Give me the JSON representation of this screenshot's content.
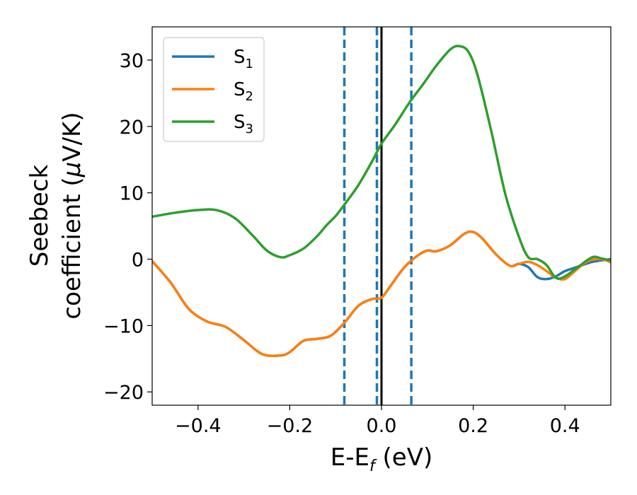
{
  "chart_data": {
    "type": "line",
    "xlabel": "E-E",
    "xlabel_sub": "f",
    "xlabel_unit": " (eV)",
    "ylabel_line1": "Seebeck",
    "ylabel_line2_pre": "coefficient  (",
    "ylabel_line2_mu": "μ",
    "ylabel_line2_post": "V/K)",
    "xlim": [
      -0.5,
      0.5
    ],
    "ylim": [
      -22,
      35
    ],
    "x_ticks": [
      -0.4,
      -0.2,
      0.0,
      0.2,
      0.4
    ],
    "x_tick_labels": [
      "−0.4",
      "−0.2",
      "0.0",
      "0.2",
      "0.4"
    ],
    "y_ticks": [
      -20,
      -10,
      0,
      10,
      20,
      30
    ],
    "y_tick_labels": [
      "−20",
      "−10",
      "0",
      "10",
      "20",
      "30"
    ],
    "grid": false,
    "legend_position": "top-left",
    "series": [
      {
        "name": "S",
        "subscript": "1",
        "color": "#1f77b4",
        "x": [
          -0.5,
          -0.46,
          -0.42,
          -0.38,
          -0.34,
          -0.3,
          -0.26,
          -0.22,
          -0.2,
          -0.17,
          -0.14,
          -0.11,
          -0.08,
          -0.05,
          -0.02,
          0.0,
          0.02,
          0.05,
          0.08,
          0.1,
          0.12,
          0.15,
          0.18,
          0.2,
          0.22,
          0.25,
          0.28,
          0.3,
          0.32,
          0.34,
          0.36,
          0.38,
          0.4,
          0.43,
          0.46,
          0.5
        ],
        "values": [
          -0.3,
          -3.5,
          -7.5,
          -9.4,
          -10.2,
          -12.2,
          -14.3,
          -14.5,
          -14.0,
          -12.3,
          -12.0,
          -11.5,
          -9.5,
          -7.0,
          -6.0,
          -5.8,
          -4.0,
          -1.2,
          0.6,
          1.3,
          1.2,
          2.1,
          3.8,
          4.1,
          3.1,
          0.7,
          -1.0,
          -0.7,
          -1.2,
          -2.7,
          -3.0,
          -2.6,
          -1.8,
          -1.1,
          -0.4,
          0.0
        ]
      },
      {
        "name": "S",
        "subscript": "2",
        "color": "#ff7f0e",
        "x": [
          -0.5,
          -0.46,
          -0.42,
          -0.38,
          -0.34,
          -0.3,
          -0.26,
          -0.22,
          -0.2,
          -0.17,
          -0.14,
          -0.11,
          -0.08,
          -0.05,
          -0.02,
          0.0,
          0.02,
          0.05,
          0.08,
          0.1,
          0.12,
          0.15,
          0.18,
          0.2,
          0.22,
          0.25,
          0.28,
          0.3,
          0.32,
          0.34,
          0.36,
          0.38,
          0.4,
          0.42,
          0.45,
          0.48,
          0.5
        ],
        "values": [
          -0.3,
          -3.5,
          -7.5,
          -9.4,
          -10.2,
          -12.2,
          -14.3,
          -14.5,
          -14.0,
          -12.3,
          -12.0,
          -11.5,
          -9.5,
          -7.0,
          -6.0,
          -5.8,
          -4.0,
          -1.2,
          0.6,
          1.3,
          1.2,
          2.1,
          3.8,
          4.1,
          3.1,
          0.7,
          -1.0,
          -0.7,
          -0.4,
          -0.9,
          -1.8,
          -2.8,
          -3.0,
          -1.9,
          -0.3,
          0.0,
          -0.5
        ]
      },
      {
        "name": "S",
        "subscript": "3",
        "color": "#2ca02c",
        "x": [
          -0.5,
          -0.45,
          -0.4,
          -0.36,
          -0.32,
          -0.28,
          -0.25,
          -0.22,
          -0.2,
          -0.17,
          -0.14,
          -0.12,
          -0.1,
          -0.08,
          -0.05,
          -0.02,
          0.0,
          0.03,
          0.06,
          0.09,
          0.12,
          0.15,
          0.17,
          0.19,
          0.21,
          0.24,
          0.27,
          0.3,
          0.32,
          0.34,
          0.36,
          0.38,
          0.4,
          0.43,
          0.46,
          0.48,
          0.5
        ],
        "values": [
          6.4,
          7.0,
          7.4,
          7.4,
          6.2,
          3.5,
          1.3,
          0.3,
          0.6,
          1.6,
          3.5,
          5.1,
          6.5,
          8.3,
          11.2,
          14.8,
          17.4,
          20.3,
          23.5,
          26.3,
          29.2,
          31.6,
          32.1,
          31.2,
          27.6,
          19.1,
          9.8,
          3.3,
          0.3,
          0.0,
          -0.9,
          -2.8,
          -2.6,
          -1.1,
          0.3,
          0.1,
          -0.2
        ]
      }
    ],
    "vertical_lines": [
      {
        "x": -0.081,
        "style": "dashed",
        "color": "#1f77b4"
      },
      {
        "x": -0.01,
        "style": "dashed",
        "color": "#1f77b4"
      },
      {
        "x": 0.0,
        "style": "solid",
        "color": "#000000"
      },
      {
        "x": 0.065,
        "style": "dashed",
        "color": "#1f77b4"
      }
    ]
  }
}
